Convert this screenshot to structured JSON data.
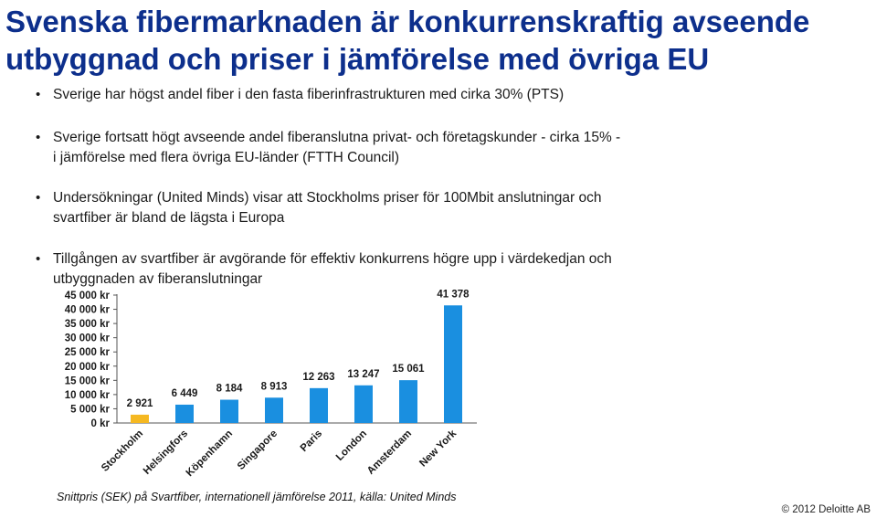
{
  "slide": {
    "title": "Svenska fibermarknaden är konkurrenskraftig avseende utbyggnad och priser i jämförelse med övriga EU",
    "bullets": [
      {
        "line1": "Sverige har högst andel fiber i den fasta fiberinfrastrukturen med cirka 30% (PTS)",
        "line2": ""
      },
      {
        "line1": "Sverige fortsatt högt avseende andel fiberanslutna privat- och företagskunder - cirka 15% -",
        "line2": "i jämförelse med flera övriga EU-länder (FTTH Council)"
      },
      {
        "line1": "Undersökningar (United Minds) visar att Stockholms priser för 100Mbit anslutningar och",
        "line2": "svartfiber är bland de lägsta i Europa"
      },
      {
        "line1": "Tillgången av svartfiber är avgörande för effektiv konkurrens högre upp i värdekedjan och",
        "line2": "utbyggnaden av fiberanslutningar"
      }
    ],
    "bullet_symbol": "•",
    "footnote": "Snittpris (SEK) på Svartfiber, internationell jämförelse 2011, källa: United Minds",
    "copyright": "© 2012 Deloitte AB"
  },
  "chart_data": {
    "type": "bar",
    "categories": [
      "Stockholm",
      "Helsingfors",
      "Köpenhamn",
      "Singapore",
      "Paris",
      "London",
      "Amsterdam",
      "New York"
    ],
    "values": [
      2921,
      6449,
      8184,
      8913,
      12263,
      13247,
      15061,
      41378
    ],
    "value_labels": [
      "2 921",
      "6 449",
      "8 184",
      "8 913",
      "12 263",
      "13 247",
      "15 061",
      "41 378"
    ],
    "y_ticks": [
      0,
      5000,
      10000,
      15000,
      20000,
      25000,
      30000,
      35000,
      40000,
      45000
    ],
    "y_tick_labels": [
      "0 kr",
      "5 000 kr",
      "10 000 kr",
      "15 000 kr",
      "20 000 kr",
      "25 000 kr",
      "30 000 kr",
      "35 000 kr",
      "40 000 kr",
      "45 000 kr"
    ],
    "ylim": [
      0,
      45000
    ],
    "grid": false,
    "colors": {
      "highlight": "#f5b821",
      "default": "#1a8fe0",
      "axis": "#555555"
    },
    "highlight_index": 0
  }
}
